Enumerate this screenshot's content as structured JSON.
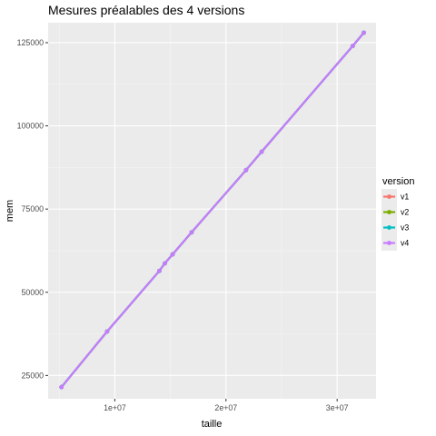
{
  "chart_data": {
    "type": "line",
    "title": "Mesures préalables des 4 versions",
    "xlabel": "taille",
    "ylabel": "mem",
    "xlim": [
      4000000,
      33500000
    ],
    "ylim": [
      18000,
      131000
    ],
    "x_ticks": [
      {
        "value": 10000000,
        "label": "1e+07"
      },
      {
        "value": 20000000,
        "label": "2e+07"
      },
      {
        "value": 30000000,
        "label": "3e+07"
      }
    ],
    "y_ticks": [
      {
        "value": 25000,
        "label": "25000"
      },
      {
        "value": 50000,
        "label": "50000"
      },
      {
        "value": 75000,
        "label": "75000"
      },
      {
        "value": 100000,
        "label": "100000"
      },
      {
        "value": 125000,
        "label": "125000"
      }
    ],
    "grid": true,
    "legend_title": "version",
    "legend_position": "right",
    "series": [
      {
        "name": "v1",
        "color": "#F8766D",
        "x": [
          5200000,
          9300000,
          14000000,
          14500000,
          15200000,
          16900000,
          21800000,
          23200000,
          31400000,
          32400000
        ],
        "y": [
          21500,
          38200,
          56400,
          58700,
          61400,
          68000,
          86700,
          92200,
          124000,
          128000
        ]
      },
      {
        "name": "v2",
        "color": "#7CAE00",
        "x": [
          5200000,
          9300000,
          14000000,
          14500000,
          15200000,
          16900000,
          21800000,
          23200000,
          31400000,
          32400000
        ],
        "y": [
          21500,
          38200,
          56400,
          58700,
          61400,
          68000,
          86700,
          92200,
          124000,
          128000
        ]
      },
      {
        "name": "v3",
        "color": "#00BFC4",
        "x": [
          5200000,
          9300000,
          14000000,
          14500000,
          15200000,
          16900000,
          21800000,
          23200000,
          31400000,
          32400000
        ],
        "y": [
          21500,
          38200,
          56400,
          58700,
          61400,
          68000,
          86700,
          92200,
          124000,
          128000
        ]
      },
      {
        "name": "v4",
        "color": "#C77CFF",
        "x": [
          5200000,
          9300000,
          14000000,
          14500000,
          15200000,
          16900000,
          21800000,
          23200000,
          31400000,
          32400000
        ],
        "y": [
          21500,
          38200,
          56400,
          58700,
          61400,
          68000,
          86700,
          92200,
          124000,
          128000
        ]
      }
    ]
  }
}
